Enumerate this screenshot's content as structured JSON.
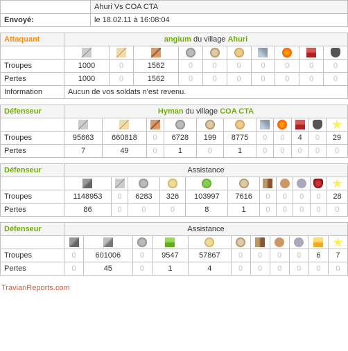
{
  "header": {
    "title": "Ahuri Vs COA CTA",
    "sent_label": "Envoyé:",
    "sent_value": "le 18.02.11 à 16:08:04"
  },
  "blocks": [
    {
      "role_class": "attacker-label",
      "role_label": "Attaquant",
      "player": "angium",
      "joiner": "du village",
      "village": "Ahuri",
      "assistance": false,
      "icons": [
        "i-sword",
        "i-sword2",
        "i-spear",
        "i-horse1",
        "i-horse2",
        "i-horse3",
        "i-ram",
        "i-cat",
        "i-chief",
        "i-settler"
      ],
      "rows": [
        {
          "label": "Troupes",
          "vals": [
            "1000",
            "0",
            "1562",
            "0",
            "0",
            "0",
            "0",
            "0",
            "0",
            "0"
          ]
        },
        {
          "label": "Pertes",
          "vals": [
            "1000",
            "0",
            "1562",
            "0",
            "0",
            "0",
            "0",
            "0",
            "0",
            "0"
          ]
        }
      ],
      "info_label": "Information",
      "info_text": "Aucun de vos soldats n'est revenu."
    },
    {
      "role_class": "defender-label",
      "role_label": "Défenseur",
      "player": "Hyman",
      "joiner": "du village",
      "village": "COA CTA",
      "assistance": false,
      "icons": [
        "i-sword",
        "i-sword2",
        "i-spear",
        "i-horse1",
        "i-horse2",
        "i-horse3",
        "i-ram",
        "i-cat",
        "i-chief",
        "i-settler",
        "i-star"
      ],
      "rows": [
        {
          "label": "Troupes",
          "vals": [
            "95663",
            "660818",
            "0",
            "6728",
            "199",
            "8775",
            "0",
            "0",
            "4",
            "0",
            "29"
          ]
        },
        {
          "label": "Pertes",
          "vals": [
            "7",
            "49",
            "0",
            "1",
            "0",
            "1",
            "0",
            "0",
            "0",
            "0",
            "0"
          ]
        }
      ]
    },
    {
      "role_class": "defender-label",
      "role_label": "Défenseur",
      "assistance": true,
      "assistance_label": "Assistance",
      "icons": [
        "i-club",
        "i-sword",
        "i-horse1",
        "i-pal",
        "i-teut",
        "i-horse2",
        "i-wood",
        "i-clay",
        "i-iron",
        "i-hero",
        "i-star"
      ],
      "rows": [
        {
          "label": "Troupes",
          "vals": [
            "1148953",
            "0",
            "6283",
            "326",
            "103997",
            "7616",
            "0",
            "0",
            "0",
            "0",
            "28"
          ]
        },
        {
          "label": "Pertes",
          "vals": [
            "86",
            "0",
            "0",
            "0",
            "8",
            "1",
            "0",
            "0",
            "0",
            "0",
            "0"
          ]
        }
      ]
    },
    {
      "role_class": "defender-label",
      "role_label": "Défenseur",
      "assistance": true,
      "assistance_label": "Assistance",
      "icons": [
        "i-club",
        "i-axe",
        "i-horse1",
        "i-scout",
        "i-pal",
        "i-horse2",
        "i-wood",
        "i-clay",
        "i-iron",
        "i-crop",
        "i-star"
      ],
      "rows": [
        {
          "label": "Troupes",
          "vals": [
            "0",
            "601006",
            "0",
            "9547",
            "57867",
            "0",
            "0",
            "0",
            "0",
            "6",
            "7"
          ]
        },
        {
          "label": "Pertes",
          "vals": [
            "0",
            "45",
            "0",
            "1",
            "4",
            "0",
            "0",
            "0",
            "0",
            "0",
            "0"
          ]
        }
      ]
    }
  ],
  "footer": "TravianReports.com"
}
